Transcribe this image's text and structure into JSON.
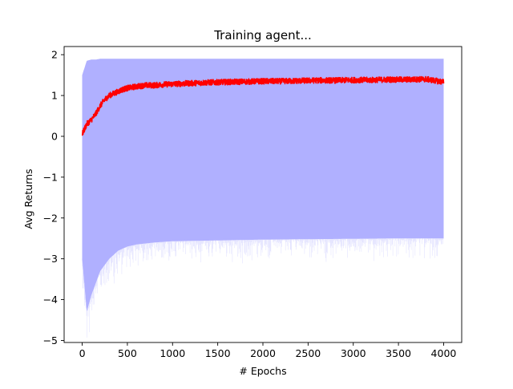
{
  "chart_data": {
    "type": "line",
    "title": "Training agent...",
    "xlabel": "# Epochs",
    "ylabel": "Avg Returns",
    "xlim": [
      -200,
      4200
    ],
    "ylim": [
      -5.05,
      2.2
    ],
    "xticks": [
      0,
      500,
      1000,
      1500,
      2000,
      2500,
      3000,
      3500,
      4000
    ],
    "yticks": [
      -5,
      -4,
      -3,
      -2,
      -1,
      0,
      1,
      2
    ],
    "grid": false,
    "legend": "none",
    "series": [
      {
        "kind": "line",
        "color": "#ff0000",
        "x": [
          0,
          50,
          100,
          150,
          200,
          250,
          300,
          350,
          400,
          450,
          500,
          600,
          700,
          800,
          900,
          1000,
          1200,
          1400,
          1600,
          1800,
          2000,
          2200,
          2400,
          2600,
          2800,
          3000,
          3200,
          3400,
          3600,
          3800,
          4000
        ],
        "y": [
          0.05,
          0.3,
          0.4,
          0.55,
          0.75,
          0.9,
          1.0,
          1.05,
          1.1,
          1.15,
          1.18,
          1.22,
          1.25,
          1.25,
          1.27,
          1.28,
          1.3,
          1.32,
          1.33,
          1.34,
          1.35,
          1.35,
          1.36,
          1.37,
          1.37,
          1.38,
          1.38,
          1.39,
          1.39,
          1.4,
          1.33
        ]
      },
      {
        "kind": "band",
        "color": "#b0b0ff",
        "x": [
          0,
          50,
          100,
          150,
          200,
          300,
          400,
          500,
          600,
          800,
          1000,
          1500,
          2000,
          2500,
          3000,
          3500,
          4000
        ],
        "upper": [
          1.5,
          1.85,
          1.88,
          1.88,
          1.9,
          1.9,
          1.9,
          1.9,
          1.9,
          1.9,
          1.9,
          1.9,
          1.9,
          1.9,
          1.9,
          1.9,
          1.9
        ],
        "lower": [
          -3.0,
          -4.3,
          -3.9,
          -3.6,
          -3.3,
          -3.0,
          -2.8,
          -2.7,
          -2.65,
          -2.6,
          -2.57,
          -2.55,
          -2.53,
          -2.52,
          -2.51,
          -2.5,
          -2.5
        ]
      }
    ]
  }
}
